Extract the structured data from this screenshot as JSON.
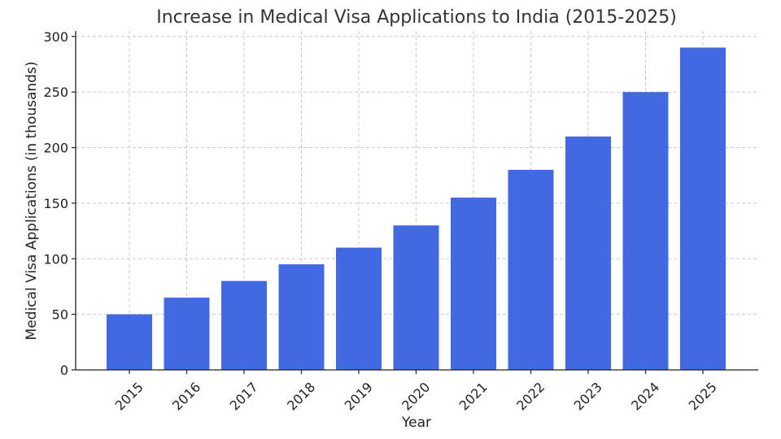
{
  "chart_data": {
    "type": "bar",
    "title": "Increase in Medical Visa Applications to India (2015-2025)",
    "xlabel": "Year",
    "ylabel": "Medical Visa Applications (in thousands)",
    "categories": [
      "2015",
      "2016",
      "2017",
      "2018",
      "2019",
      "2020",
      "2021",
      "2022",
      "2023",
      "2024",
      "2025"
    ],
    "values": [
      50,
      65,
      80,
      95,
      110,
      130,
      155,
      180,
      210,
      250,
      290
    ],
    "ylim": [
      0,
      305
    ],
    "yticks": [
      0,
      50,
      100,
      150,
      200,
      250,
      300
    ],
    "grid": true,
    "bar_color": "#4169E1"
  }
}
